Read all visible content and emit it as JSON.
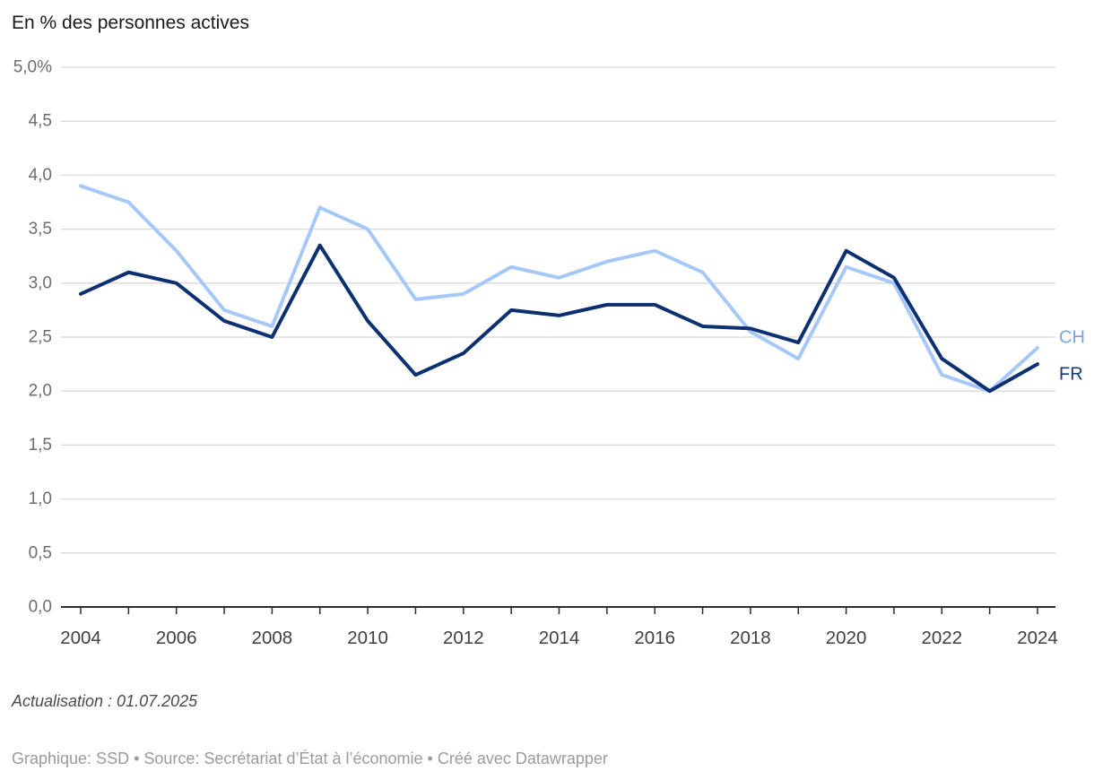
{
  "chart_data": {
    "type": "line",
    "title": "En % des personnes actives",
    "x": [
      2004,
      2005,
      2006,
      2007,
      2008,
      2009,
      2010,
      2011,
      2012,
      2013,
      2014,
      2015,
      2016,
      2017,
      2018,
      2019,
      2020,
      2021,
      2022,
      2023,
      2024
    ],
    "series": [
      {
        "name": "CH",
        "color": "#a6c8f8",
        "label_color": "#7ba4dc",
        "values": [
          3.9,
          3.75,
          3.3,
          2.75,
          2.6,
          3.7,
          3.5,
          2.85,
          2.9,
          3.15,
          3.05,
          3.2,
          3.3,
          3.1,
          2.55,
          2.3,
          3.15,
          3.0,
          2.15,
          2.0,
          2.4
        ]
      },
      {
        "name": "FR",
        "color": "#0d3071",
        "label_color": "#173a74",
        "values": [
          2.9,
          3.1,
          3.0,
          2.65,
          2.5,
          3.35,
          2.65,
          2.15,
          2.35,
          2.75,
          2.7,
          2.8,
          2.8,
          2.6,
          2.58,
          2.45,
          3.3,
          3.05,
          2.3,
          2.0,
          2.25
        ]
      }
    ],
    "ylim": [
      0,
      5
    ],
    "y_ticks": [
      {
        "label": "5,0%",
        "value": 5.0
      },
      {
        "label": "4,5",
        "value": 4.5
      },
      {
        "label": "4,0",
        "value": 4.0
      },
      {
        "label": "3,5",
        "value": 3.5
      },
      {
        "label": "3,0",
        "value": 3.0
      },
      {
        "label": "2,5",
        "value": 2.5
      },
      {
        "label": "2,0",
        "value": 2.0
      },
      {
        "label": "1,5",
        "value": 1.5
      },
      {
        "label": "1,0",
        "value": 1.0
      },
      {
        "label": "0,5",
        "value": 0.5
      },
      {
        "label": "0,0",
        "value": 0.0
      }
    ],
    "x_labeled_ticks": [
      {
        "label": "2004",
        "value": 2004
      },
      {
        "label": "2006",
        "value": 2006
      },
      {
        "label": "2008",
        "value": 2008
      },
      {
        "label": "2010",
        "value": 2010
      },
      {
        "label": "2012",
        "value": 2012
      },
      {
        "label": "2014",
        "value": 2014
      },
      {
        "label": "2016",
        "value": 2016
      },
      {
        "label": "2018",
        "value": 2018
      },
      {
        "label": "2020",
        "value": 2020
      },
      {
        "label": "2022",
        "value": 2022
      },
      {
        "label": "2024",
        "value": 2024
      }
    ],
    "grid": true,
    "legend_position": "right-of-line-ends"
  },
  "footer": {
    "note": "Actualisation : 01.07.2025",
    "byline": "Graphique: SSD • Source: Secrétariat d’État à l’économie • Créé avec Datawrapper"
  }
}
